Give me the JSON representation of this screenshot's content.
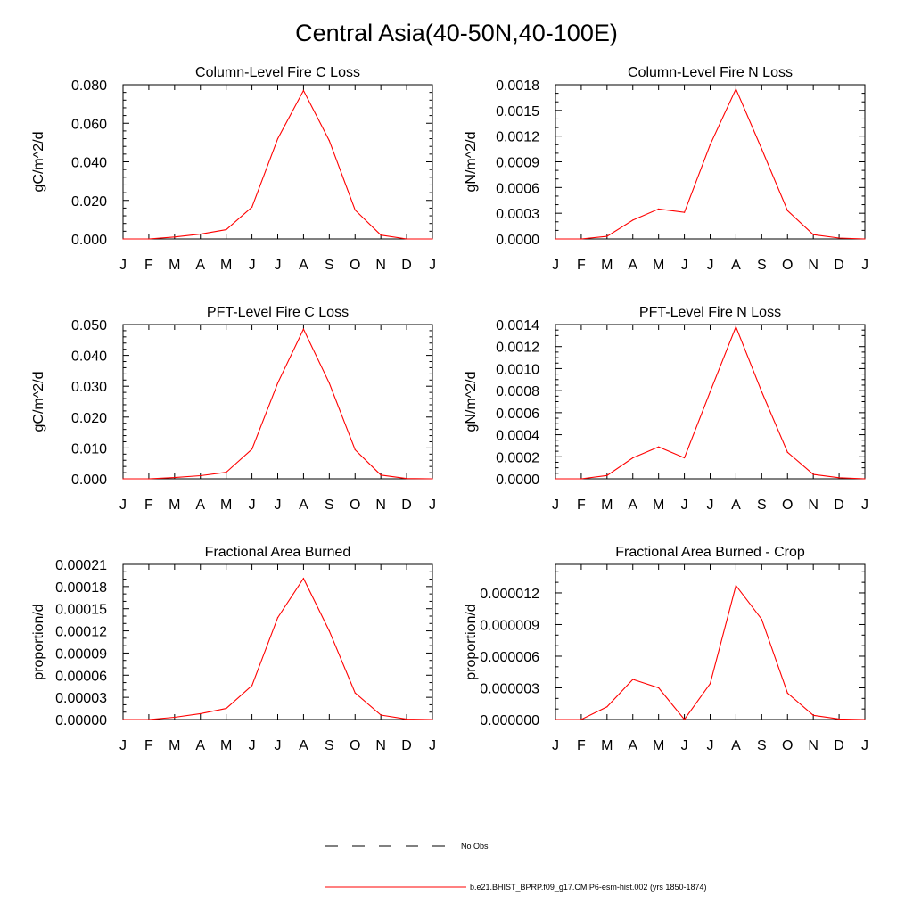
{
  "title": "Central Asia(40-50N,40-100E)",
  "colors": {
    "model_line": "#ff0000",
    "obs_line": "#000000"
  },
  "legend": {
    "items": [
      {
        "label": "No Obs",
        "style": "dashed",
        "color": "#000000"
      },
      {
        "label": "b.e21.BHIST_BPRP.f09_g17.CMIP6-esm-hist.002 (yrs 1850-1874)",
        "style": "solid",
        "color": "#ff0000"
      }
    ]
  },
  "chart_data": [
    {
      "type": "line",
      "title": "Column-Level Fire C Loss",
      "ylabel": "gC/m^2/d",
      "categories": [
        "J",
        "F",
        "M",
        "A",
        "M",
        "J",
        "J",
        "A",
        "S",
        "O",
        "N",
        "D",
        "J"
      ],
      "ylim": [
        0,
        0.08
      ],
      "yticks": [
        "0.000",
        "0.020",
        "0.040",
        "0.060",
        "0.080"
      ],
      "yminor": 4,
      "series": [
        {
          "values": [
            0.0,
            0.0,
            0.001,
            0.0025,
            0.0048,
            0.0165,
            0.052,
            0.077,
            0.051,
            0.015,
            0.002,
            0.0,
            0.0
          ]
        }
      ]
    },
    {
      "type": "line",
      "title": "Column-Level Fire N Loss",
      "ylabel": "gN/m^2/d",
      "categories": [
        "J",
        "F",
        "M",
        "A",
        "M",
        "J",
        "J",
        "A",
        "S",
        "O",
        "N",
        "D",
        "J"
      ],
      "ylim": [
        0,
        0.0018
      ],
      "yticks": [
        "0.0000",
        "0.0003",
        "0.0006",
        "0.0009",
        "0.0012",
        "0.0015",
        "0.0018"
      ],
      "yminor": 2,
      "series": [
        {
          "values": [
            0.0,
            0.0,
            3e-05,
            0.00022,
            0.00035,
            0.00031,
            0.0011,
            0.00175,
            0.00105,
            0.00033,
            5e-05,
            1e-05,
            0.0
          ]
        }
      ]
    },
    {
      "type": "line",
      "title": "PFT-Level Fire C Loss",
      "ylabel": "gC/m^2/d",
      "categories": [
        "J",
        "F",
        "M",
        "A",
        "M",
        "J",
        "J",
        "A",
        "S",
        "O",
        "N",
        "D",
        "J"
      ],
      "ylim": [
        0,
        0.05
      ],
      "yticks": [
        "0.000",
        "0.010",
        "0.020",
        "0.030",
        "0.040",
        "0.050"
      ],
      "yminor": 4,
      "series": [
        {
          "values": [
            0.0,
            0.0,
            0.0004,
            0.001,
            0.0021,
            0.0096,
            0.031,
            0.0485,
            0.031,
            0.0094,
            0.0012,
            0.0001,
            0.0
          ]
        }
      ]
    },
    {
      "type": "line",
      "title": "PFT-Level Fire N Loss",
      "ylabel": "gN/m^2/d",
      "categories": [
        "J",
        "F",
        "M",
        "A",
        "M",
        "J",
        "J",
        "A",
        "S",
        "O",
        "N",
        "D",
        "J"
      ],
      "ylim": [
        0,
        0.0014
      ],
      "yticks": [
        "0.0000",
        "0.0002",
        "0.0004",
        "0.0006",
        "0.0008",
        "0.0010",
        "0.0012",
        "0.0014"
      ],
      "yminor": 3,
      "series": [
        {
          "values": [
            0.0,
            0.0,
            3e-05,
            0.00019,
            0.00029,
            0.00019,
            0.00079,
            0.00138,
            0.00079,
            0.00024,
            4e-05,
            1e-05,
            0.0
          ]
        }
      ]
    },
    {
      "type": "line",
      "title": "Fractional Area Burned",
      "ylabel": "proportion/d",
      "categories": [
        "J",
        "F",
        "M",
        "A",
        "M",
        "J",
        "J",
        "A",
        "S",
        "O",
        "N",
        "D",
        "J"
      ],
      "ylim": [
        0,
        0.00021
      ],
      "yticks": [
        "0.00000",
        "0.00003",
        "0.00006",
        "0.00009",
        "0.00012",
        "0.00015",
        "0.00018",
        "0.00021"
      ],
      "yminor": 2,
      "series": [
        {
          "values": [
            0.0,
            0.0,
            3e-06,
            8e-06,
            1.5e-05,
            4.6e-05,
            0.000138,
            0.000191,
            0.00012,
            3.6e-05,
            6e-06,
            5e-07,
            0.0
          ]
        }
      ]
    },
    {
      "type": "line",
      "title": "Fractional Area Burned - Crop",
      "ylabel": "proportion/d",
      "categories": [
        "J",
        "F",
        "M",
        "A",
        "M",
        "J",
        "J",
        "A",
        "S",
        "O",
        "N",
        "D",
        "J"
      ],
      "ylim": [
        0,
        1.47e-05
      ],
      "yticks": [
        "0.000000",
        "0.000003",
        "0.000006",
        "0.000009",
        "0.000012"
      ],
      "yminor": 2,
      "series": [
        {
          "values": [
            0.0,
            0.0,
            1.2e-06,
            3.8e-06,
            3e-06,
            0.0,
            3.4e-06,
            1.27e-05,
            9.5e-06,
            2.5e-06,
            4e-07,
            5e-08,
            0.0
          ]
        }
      ]
    }
  ]
}
